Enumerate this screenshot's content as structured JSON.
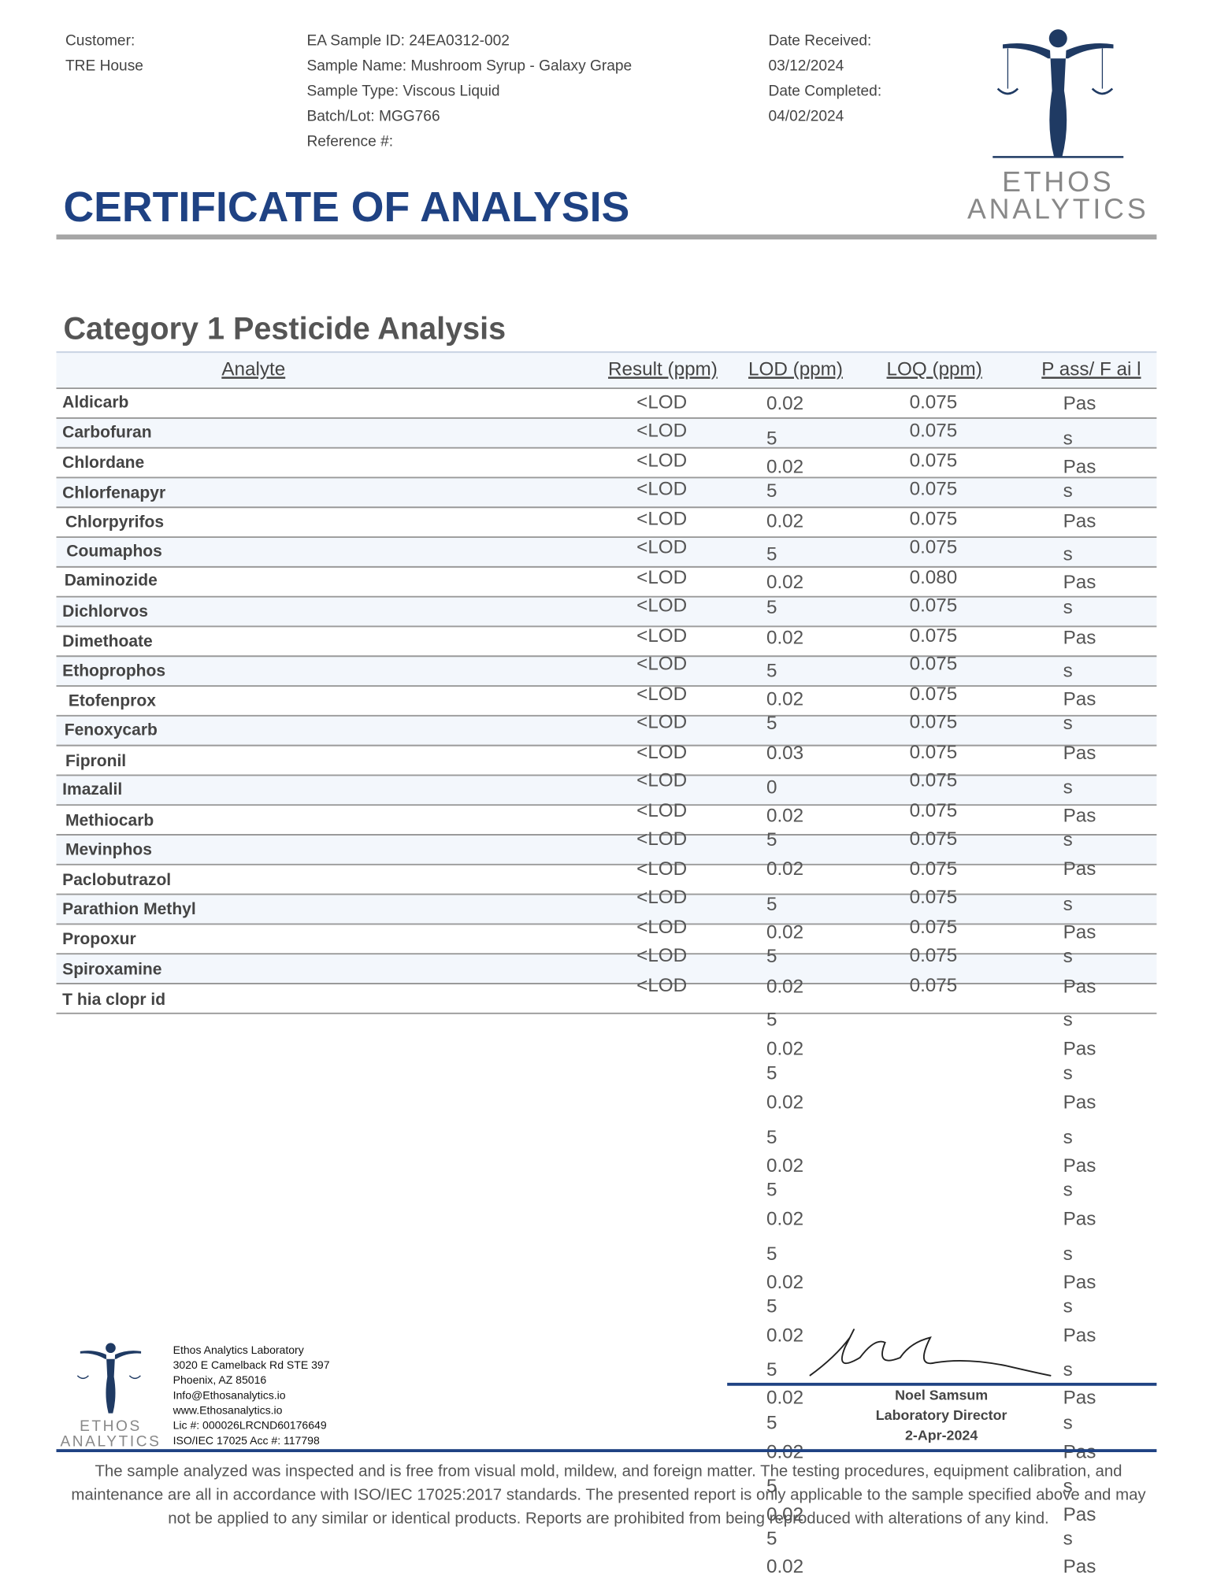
{
  "header": {
    "left": [
      "Customer:",
      "TRE House"
    ],
    "middle": [
      "EA Sample ID: 24EA0312-002",
      "Sample Name: Mushroom Syrup - Galaxy Grape",
      "Sample Type: Viscous Liquid",
      "Batch/Lot: MGG766",
      "Reference #:"
    ],
    "right": [
      "Date Received:",
      "03/12/2024",
      "Date Completed:",
      "04/02/2024"
    ]
  },
  "logo": {
    "name": "ETHOS",
    "sub": "ANALYTICS"
  },
  "title": "CERTIFICATE OF ANALYSIS",
  "section_title": "Category 1 Pesticide Analysis",
  "table": {
    "columns": [
      "Analyte",
      "Result (ppm)",
      "LOD (ppm)",
      "LOQ (ppm)",
      "P ass/ F ai l"
    ],
    "rows": [
      [
        "Aldicarb",
        "<LOD",
        "0.075"
      ],
      [
        "Carbofuran",
        "<LOD",
        "0.075"
      ],
      [
        "Chlordane",
        "<LOD",
        "0.075"
      ],
      [
        "Chlorfenapyr",
        "<LOD",
        "0.075"
      ],
      [
        "Chlorpyrifos",
        "<LOD",
        "0.075"
      ],
      [
        "Coumaphos",
        "<LOD",
        "0.075"
      ],
      [
        "Daminozide",
        "<LOD",
        "0.080"
      ],
      [
        "Dichlorvos",
        "<LOD",
        "0.075"
      ],
      [
        "Dimethoate",
        "<LOD",
        "0.075"
      ],
      [
        "Ethoprophos",
        "<LOD",
        "0.075"
      ],
      [
        "Etofenprox",
        "<LOD",
        "0.075"
      ],
      [
        "Fenoxycarb",
        "<LOD",
        "0.075"
      ],
      [
        "Fipronil",
        "<LOD",
        "0.075"
      ],
      [
        "Imazalil",
        "<LOD",
        "0.075"
      ],
      [
        "Methiocarb",
        "<LOD",
        "0.075"
      ],
      [
        "Mevinphos",
        "<LOD",
        "0.075"
      ],
      [
        "Paclobutrazol",
        "<LOD",
        "0.075"
      ],
      [
        "Parathion Methyl",
        "<LOD",
        "0.075"
      ],
      [
        "Propoxur",
        "<LOD",
        "0.075"
      ],
      [
        "Spiroxamine",
        "<LOD",
        "0.075"
      ],
      [
        "T hia clopr id",
        "<LOD",
        "0.075"
      ]
    ],
    "lod_column": [
      "0.02",
      "5",
      "0.02",
      "5",
      "0.02",
      "5",
      "0.02",
      "5",
      "0.02",
      "5",
      "0.02",
      "5",
      "0.03",
      "0",
      "0.02",
      "5",
      "0.02",
      "5",
      "0.02",
      "5",
      "0.02",
      "5",
      "0.02",
      "5",
      "0.02",
      "5",
      "0.02",
      "5",
      "0.02",
      "5",
      "0.02",
      "5",
      "0.02",
      "5",
      "0.02",
      "5",
      "0.02",
      "5",
      "0.02",
      "5",
      "0.02"
    ],
    "passfail_column": [
      "Pas",
      "s",
      "Pas",
      "s",
      "Pas",
      "s",
      "Pas",
      "s",
      "Pas",
      "s",
      "Pas",
      "s",
      "Pas",
      "s",
      "Pas",
      "s",
      "Pas",
      "s",
      "Pas",
      "s",
      "Pas",
      "s",
      "Pas",
      "s",
      "Pas",
      "s",
      "Pas",
      "s",
      "Pas",
      "s",
      "Pas",
      "s",
      "Pas",
      "s",
      "Pas",
      "s",
      "Pas",
      "s",
      "Pas",
      "s",
      "Pas"
    ]
  },
  "lab_info": [
    "Ethos Analytics Laboratory",
    "3020 E Camelback Rd STE 397",
    "Phoenix, AZ 85016",
    "Info@Ethosanalytics.io",
    "www.Ethosanalytics.io",
    "Lic #: 000026LRCND60176649",
    "ISO/IEC 17025 Acc #: 117798"
  ],
  "signatory": {
    "name": "Noel Samsum",
    "role": "Laboratory Director",
    "date": "2-Apr-2024"
  },
  "disclaimer": [
    "The sample analyzed was inspected and is free from visual mold, mildew, and foreign matter. The testing procedures, equipment calibration, and",
    "maintenance are all in accordance with ISO/IEC 17025:2017 standards. The presented report is only applicable to the sample specified above and may",
    "not be applied to any similar or identical products. Reports are prohibited from being reproduced with alterations of any kind."
  ]
}
